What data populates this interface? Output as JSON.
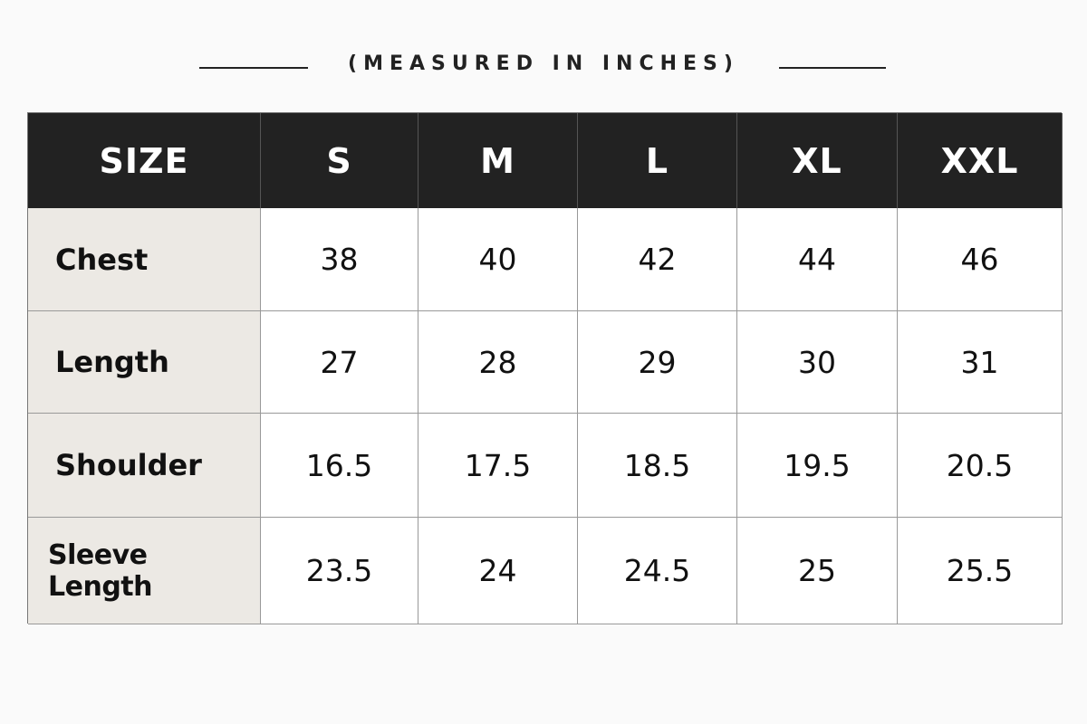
{
  "subtitle": "(MEASURED IN INCHES)",
  "table": {
    "columns": [
      "SIZE",
      "S",
      "M",
      "L",
      "XL",
      "XXL"
    ],
    "rows": [
      {
        "label": "Chest",
        "values": [
          38,
          40,
          42,
          44,
          46
        ]
      },
      {
        "label": "Length",
        "values": [
          27,
          28,
          29,
          30,
          31
        ]
      },
      {
        "label": "Shoulder",
        "values": [
          16.5,
          17.5,
          18.5,
          19.5,
          20.5
        ]
      },
      {
        "label": "Sleeve Length",
        "values": [
          23.5,
          24,
          24.5,
          25,
          25.5
        ]
      }
    ]
  }
}
